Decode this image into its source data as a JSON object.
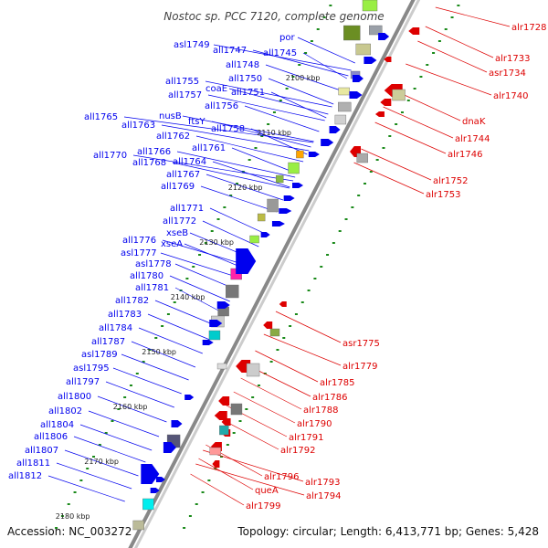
{
  "title": "Nostoc sp. PCC 7120, complete genome",
  "footer": {
    "accession": "Accession: NC_003272",
    "summary": "Topology: circular; Length: 6,413,771 bp; Genes: 5,428"
  },
  "colors": {
    "reverse_strand": "#0000ee",
    "forward_strand": "#dd0000",
    "backbone": "#888888",
    "tick_dots": "#1a8a1a"
  },
  "ticks": [
    "2100 kbp",
    "2110 kbp",
    "2120 kbp",
    "2130 kbp",
    "2140 kbp",
    "2150 kbp",
    "2160 kbp",
    "2170 kbp",
    "2180 kbp"
  ],
  "left_labels": [
    "por",
    "asl1749",
    "all1747",
    "all1745",
    "all1748",
    "all1750",
    "all1755",
    "coaE",
    "all1751",
    "all1757",
    "all1756",
    "all1765",
    "nusB",
    "ftsY",
    "all1763",
    "all1758",
    "all1762",
    "all1761",
    "all1770",
    "all1766",
    "all1764",
    "all1768",
    "all1767",
    "all1769",
    "all1771",
    "all1772",
    "xseB",
    "all1776",
    "xseA",
    "asl1777",
    "asl1778",
    "all1780",
    "all1781",
    "all1782",
    "all1783",
    "all1784",
    "all1787",
    "asl1789",
    "asl1795",
    "all1797",
    "all1800",
    "all1802",
    "all1804",
    "all1806",
    "all1807",
    "all1811",
    "all1812"
  ],
  "right_labels": [
    "alr1728",
    "alr1733",
    "asr1734",
    "alr1740",
    "dnaK",
    "alr1744",
    "alr1746",
    "alr1752",
    "alr1753",
    "asr1775",
    "alr1779",
    "alr1785",
    "alr1786",
    "alr1788",
    "alr1790",
    "alr1791",
    "alr1792",
    "alr1796",
    "alr1793",
    "alr1794",
    "queA",
    "alr1799"
  ]
}
